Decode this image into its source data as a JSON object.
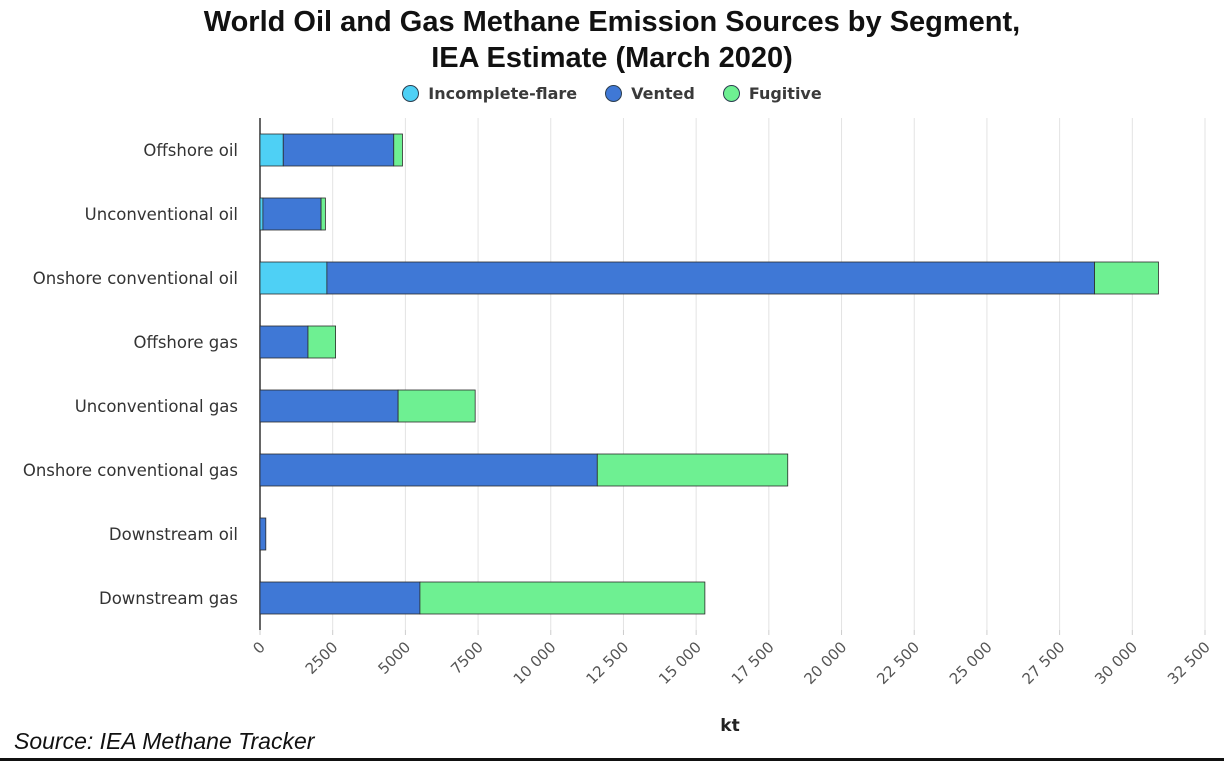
{
  "chart_data": {
    "type": "bar",
    "orientation": "horizontal",
    "stacked": true,
    "title": [
      "World Oil and Gas Methane Emission Sources by Segment,",
      "IEA Estimate (March 2020)"
    ],
    "xlabel": "kt",
    "ylabel": "",
    "xlim": [
      0,
      32500
    ],
    "x_ticks": [
      0,
      2500,
      5000,
      7500,
      10000,
      12500,
      15000,
      17500,
      20000,
      22500,
      25000,
      27500,
      30000,
      32500
    ],
    "x_tick_labels": [
      "0",
      "2500",
      "5000",
      "7500",
      "10 000",
      "12 500",
      "15 000",
      "17 500",
      "20 000",
      "22 500",
      "25 000",
      "27 500",
      "30 000",
      "32 500"
    ],
    "grid": true,
    "legend_position": "top-center",
    "categories": [
      "Offshore oil",
      "Unconventional oil",
      "Onshore conventional oil",
      "Offshore gas",
      "Unconventional gas",
      "Onshore conventional gas",
      "Downstream oil",
      "Downstream gas"
    ],
    "series": [
      {
        "name": "Incomplete-flare",
        "color": "#4ed0f5",
        "values": [
          800,
          100,
          2300,
          0,
          0,
          0,
          0,
          0
        ]
      },
      {
        "name": "Vented",
        "color": "#3f78d6",
        "values": [
          3800,
          2000,
          26400,
          1650,
          4750,
          11600,
          200,
          5500
        ]
      },
      {
        "name": "Fugitive",
        "color": "#6ef092",
        "values": [
          300,
          150,
          2200,
          950,
          2650,
          6550,
          0,
          9800
        ]
      }
    ]
  },
  "source": "Source: IEA Methane Tracker"
}
